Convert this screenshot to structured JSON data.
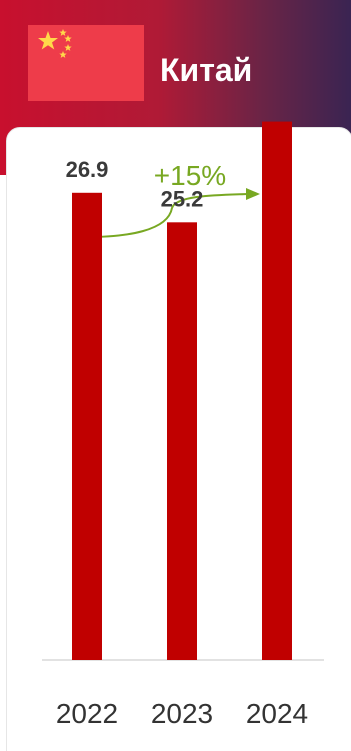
{
  "header": {
    "country": "Китай",
    "flag": "china-flag",
    "colors": {
      "flag_red": "#ee3c4a",
      "flag_star": "#ffd84a"
    }
  },
  "growth": {
    "label": "+15%",
    "color": "#78a822"
  },
  "chart_data": {
    "type": "bar",
    "categories": [
      "2022",
      "2023",
      "2024"
    ],
    "values": [
      26.9,
      25.2,
      31.0
    ],
    "data_labels": [
      "26.9",
      "25.2",
      ""
    ],
    "bar_color": "#c00000",
    "title": "",
    "xlabel": "",
    "ylabel": "",
    "ylim": [
      0,
      38
    ],
    "grid": false,
    "legend": "none"
  }
}
